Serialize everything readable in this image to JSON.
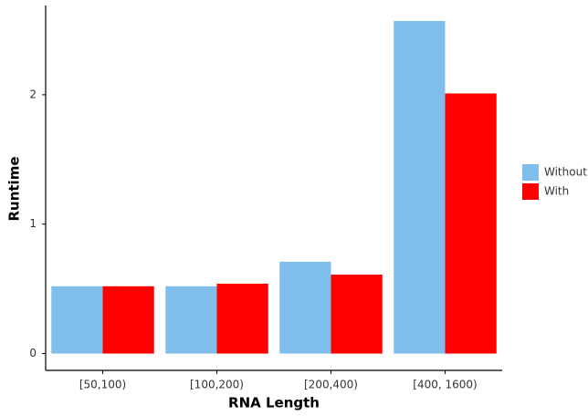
{
  "chart_data": {
    "type": "bar",
    "x_label": "RNA Length",
    "y_label": "Runtime",
    "categories": [
      "[50,100)",
      "[100,200)",
      "[200,400)",
      "[400, 1600)"
    ],
    "series": [
      {
        "name": "Without",
        "color": "#80bfec",
        "values": [
          0.52,
          0.52,
          0.71,
          2.57
        ]
      },
      {
        "name": "With",
        "color": "#ff0000",
        "values": [
          0.52,
          0.54,
          0.61,
          2.01
        ]
      }
    ],
    "ylim": [
      -0.13,
      2.69
    ],
    "yticks": [
      0,
      1,
      2
    ],
    "grid": false,
    "legend": "right"
  }
}
